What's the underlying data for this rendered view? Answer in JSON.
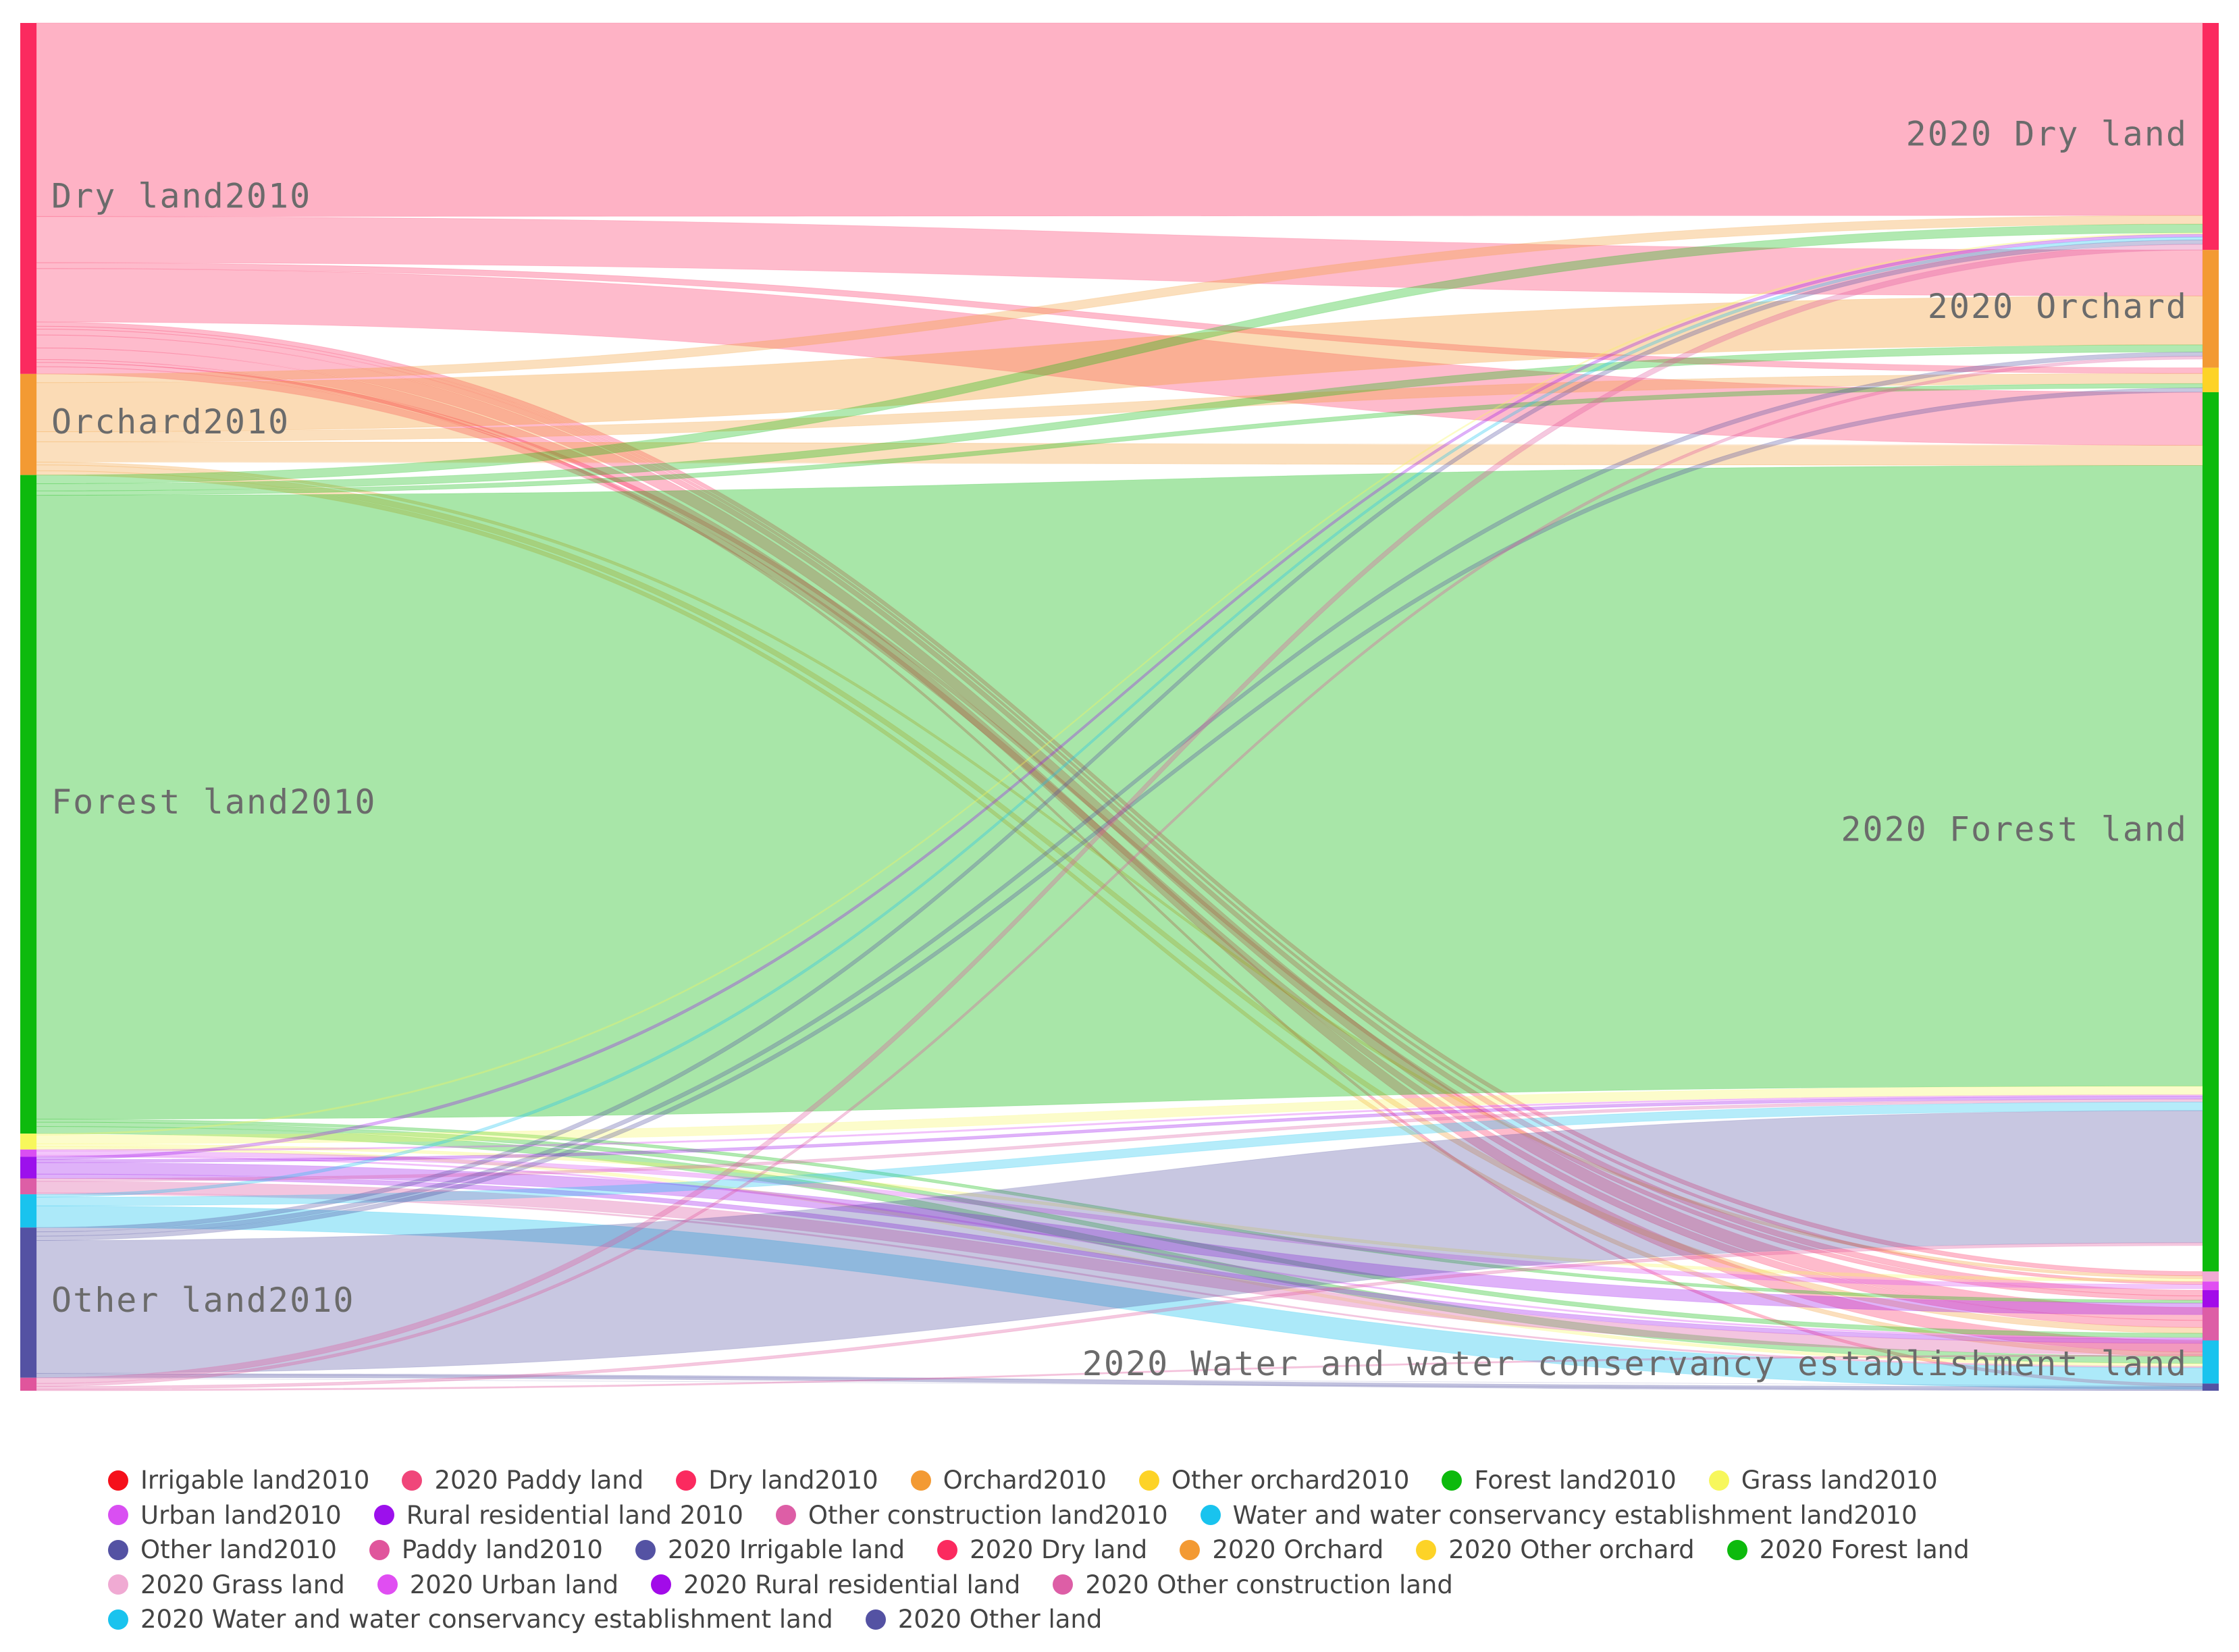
{
  "chart_data": {
    "type": "sankey",
    "title": "",
    "source_nodes": [
      {
        "id": "s_dry",
        "name": "Dry land2010",
        "label": "Dry land2010",
        "value": 243,
        "color": "#fb2a5f"
      },
      {
        "id": "s_orchard",
        "name": "Orchard2010",
        "label": "Orchard2010",
        "value": 70,
        "color": "#f39a33"
      },
      {
        "id": "s_forest",
        "name": "Forest land2010",
        "label": "Forest land2010",
        "value": 456,
        "color": "#0dba0d"
      },
      {
        "id": "s_grass",
        "name": "Grass land2010",
        "value": 11,
        "color": "#f7f75c"
      },
      {
        "id": "s_urban",
        "name": "Urban land2010",
        "value": 5,
        "color": "#d94ff2"
      },
      {
        "id": "s_rural",
        "name": "Rural residential land 2010",
        "value": 15,
        "color": "#9c10ec"
      },
      {
        "id": "s_othercon",
        "name": "Other construction land2010",
        "value": 11,
        "color": "#dd5ea6"
      },
      {
        "id": "s_water",
        "name": "Water and water conservancy establishment land2010",
        "value": 23,
        "color": "#19c3ee"
      },
      {
        "id": "s_other",
        "name": "Other land2010",
        "label": "Other land2010",
        "value": 104,
        "color": "#5452a3"
      },
      {
        "id": "s_paddy",
        "name": "Paddy land2010",
        "value": 9,
        "color": "#e0559c"
      }
    ],
    "target_nodes": [
      {
        "id": "t_dry",
        "name": "2020 Dry land",
        "label": "2020 Dry land",
        "value": 158,
        "color": "#fb2a5f"
      },
      {
        "id": "t_orchard",
        "name": "2020 Orchard",
        "label": "2020 Orchard",
        "value": 82,
        "color": "#f39a33"
      },
      {
        "id": "t_otherorch",
        "name": "2020 Other orchard",
        "value": 17,
        "color": "#fdd327"
      },
      {
        "id": "t_forest",
        "name": "2020 Forest land",
        "label": "2020 Forest land",
        "value": 612,
        "color": "#0dba0d"
      },
      {
        "id": "t_grass",
        "name": "2020 Grass land",
        "value": 7,
        "color": "#f0aad3"
      },
      {
        "id": "t_urban",
        "name": "2020 Urban land",
        "value": 6,
        "color": "#e04ef2"
      },
      {
        "id": "t_rural",
        "name": "2020 Rural residential land",
        "value": 12,
        "color": "#a20be9"
      },
      {
        "id": "t_othercon",
        "name": "2020 Other construction land",
        "value": 23,
        "color": "#dd5ea6"
      },
      {
        "id": "t_water",
        "name": "2020 Water and water conservancy establishment land",
        "label": "2020 Water and water conservancy establishment land",
        "value": 30,
        "color": "#19c3ee"
      },
      {
        "id": "t_other",
        "name": "2020 Other land",
        "value": 5,
        "color": "#5452a3"
      }
    ],
    "links": [
      {
        "source": "s_dry",
        "target": "t_dry",
        "value": 134
      },
      {
        "source": "s_dry",
        "target": "t_orchard",
        "value": 32
      },
      {
        "source": "s_dry",
        "target": "t_otherorch",
        "value": 4
      },
      {
        "source": "s_dry",
        "target": "t_forest",
        "value": 37
      },
      {
        "source": "s_dry",
        "target": "t_grass",
        "value": 3
      },
      {
        "source": "s_dry",
        "target": "t_urban",
        "value": 2
      },
      {
        "source": "s_dry",
        "target": "t_rural",
        "value": 4
      },
      {
        "source": "s_dry",
        "target": "t_othercon",
        "value": 9
      },
      {
        "source": "s_dry",
        "target": "t_water",
        "value": 8
      },
      {
        "source": "s_dry",
        "target": "t_other",
        "value": 2
      },
      {
        "source": "s_dry",
        "target": "t_rural",
        "value": 3
      },
      {
        "source": "s_dry",
        "target": "t_othercon",
        "value": 5
      },
      {
        "source": "s_orchard",
        "target": "t_dry",
        "value": 6
      },
      {
        "source": "s_orchard",
        "target": "t_orchard",
        "value": 34
      },
      {
        "source": "s_orchard",
        "target": "t_otherorch",
        "value": 7
      },
      {
        "source": "s_orchard",
        "target": "t_forest",
        "value": 14
      },
      {
        "source": "s_orchard",
        "target": "t_grass",
        "value": 2
      },
      {
        "source": "s_orchard",
        "target": "t_othercon",
        "value": 4
      },
      {
        "source": "s_orchard",
        "target": "t_water",
        "value": 3
      },
      {
        "source": "s_forest",
        "target": "t_dry",
        "value": 6
      },
      {
        "source": "s_forest",
        "target": "t_orchard",
        "value": 5
      },
      {
        "source": "s_forest",
        "target": "t_otherorch",
        "value": 3
      },
      {
        "source": "s_forest",
        "target": "t_forest",
        "value": 432
      },
      {
        "source": "s_forest",
        "target": "t_rural",
        "value": 2
      },
      {
        "source": "s_forest",
        "target": "t_othercon",
        "value": 3
      },
      {
        "source": "s_forest",
        "target": "t_water",
        "value": 5
      },
      {
        "source": "s_grass",
        "target": "t_dry",
        "value": 1
      },
      {
        "source": "s_grass",
        "target": "t_forest",
        "value": 6
      },
      {
        "source": "s_grass",
        "target": "t_grass",
        "value": 2
      },
      {
        "source": "s_grass",
        "target": "t_water",
        "value": 2
      },
      {
        "source": "s_urban",
        "target": "t_forest",
        "value": 1
      },
      {
        "source": "s_urban",
        "target": "t_urban",
        "value": 3
      },
      {
        "source": "s_urban",
        "target": "t_othercon",
        "value": 1
      },
      {
        "source": "s_rural",
        "target": "t_dry",
        "value": 2
      },
      {
        "source": "s_rural",
        "target": "t_forest",
        "value": 2
      },
      {
        "source": "s_rural",
        "target": "t_rural",
        "value": 8
      },
      {
        "source": "s_rural",
        "target": "t_othercon",
        "value": 3
      },
      {
        "source": "s_othercon",
        "target": "t_forest",
        "value": 2
      },
      {
        "source": "s_othercon",
        "target": "t_othercon",
        "value": 8
      },
      {
        "source": "s_othercon",
        "target": "t_water",
        "value": 1
      },
      {
        "source": "s_water",
        "target": "t_dry",
        "value": 2
      },
      {
        "source": "s_water",
        "target": "t_forest",
        "value": 6
      },
      {
        "source": "s_water",
        "target": "t_water",
        "value": 15
      },
      {
        "source": "s_other",
        "target": "t_dry",
        "value": 3
      },
      {
        "source": "s_other",
        "target": "t_orchard",
        "value": 3
      },
      {
        "source": "s_other",
        "target": "t_otherorch",
        "value": 3
      },
      {
        "source": "s_other",
        "target": "t_forest",
        "value": 92
      },
      {
        "source": "s_other",
        "target": "t_other",
        "value": 3
      },
      {
        "source": "s_paddy",
        "target": "t_dry",
        "value": 4
      },
      {
        "source": "s_paddy",
        "target": "t_orchard",
        "value": 2
      },
      {
        "source": "s_paddy",
        "target": "t_forest",
        "value": 2
      },
      {
        "source": "s_paddy",
        "target": "t_othercon",
        "value": 1
      }
    ],
    "legend": {
      "position": "bottom",
      "items": [
        {
          "name": "Irrigable land2010",
          "color": "#f5101a"
        },
        {
          "name": "2020 Paddy land",
          "color": "#f0467a"
        },
        {
          "name": "Dry land2010",
          "color": "#fb2a5f"
        },
        {
          "name": "Orchard2010",
          "color": "#f39a33"
        },
        {
          "name": "Other orchard2010",
          "color": "#fdd327"
        },
        {
          "name": "Forest land2010",
          "color": "#0dba0d"
        },
        {
          "name": "Grass land2010",
          "color": "#f7f75c"
        },
        {
          "name": "Urban land2010",
          "color": "#d94ff2"
        },
        {
          "name": "Rural residential land 2010",
          "color": "#9c10ec"
        },
        {
          "name": "Other construction land2010",
          "color": "#dd5ea6"
        },
        {
          "name": "Water and water conservancy establishment land2010",
          "color": "#19c3ee"
        },
        {
          "name": "Other land2010",
          "color": "#5452a3"
        },
        {
          "name": "Paddy land2010",
          "color": "#e0559c"
        },
        {
          "name": "2020 Irrigable land",
          "color": "#5452a3"
        },
        {
          "name": "2020 Dry land",
          "color": "#fb2a5f"
        },
        {
          "name": "2020 Orchard",
          "color": "#f39a33"
        },
        {
          "name": "2020 Other orchard",
          "color": "#fdd327"
        },
        {
          "name": "2020 Forest land",
          "color": "#0dba0d"
        },
        {
          "name": "2020 Grass land",
          "color": "#f0aad3"
        },
        {
          "name": "2020 Urban land",
          "color": "#e04ef2"
        },
        {
          "name": "2020 Rural residential land",
          "color": "#a20be9"
        },
        {
          "name": "2020 Other construction land",
          "color": "#dd5ea6"
        },
        {
          "name": "2020 Water and water conservancy establishment land",
          "color": "#19c3ee"
        },
        {
          "name": "2020 Other land",
          "color": "#5452a3"
        }
      ]
    }
  }
}
